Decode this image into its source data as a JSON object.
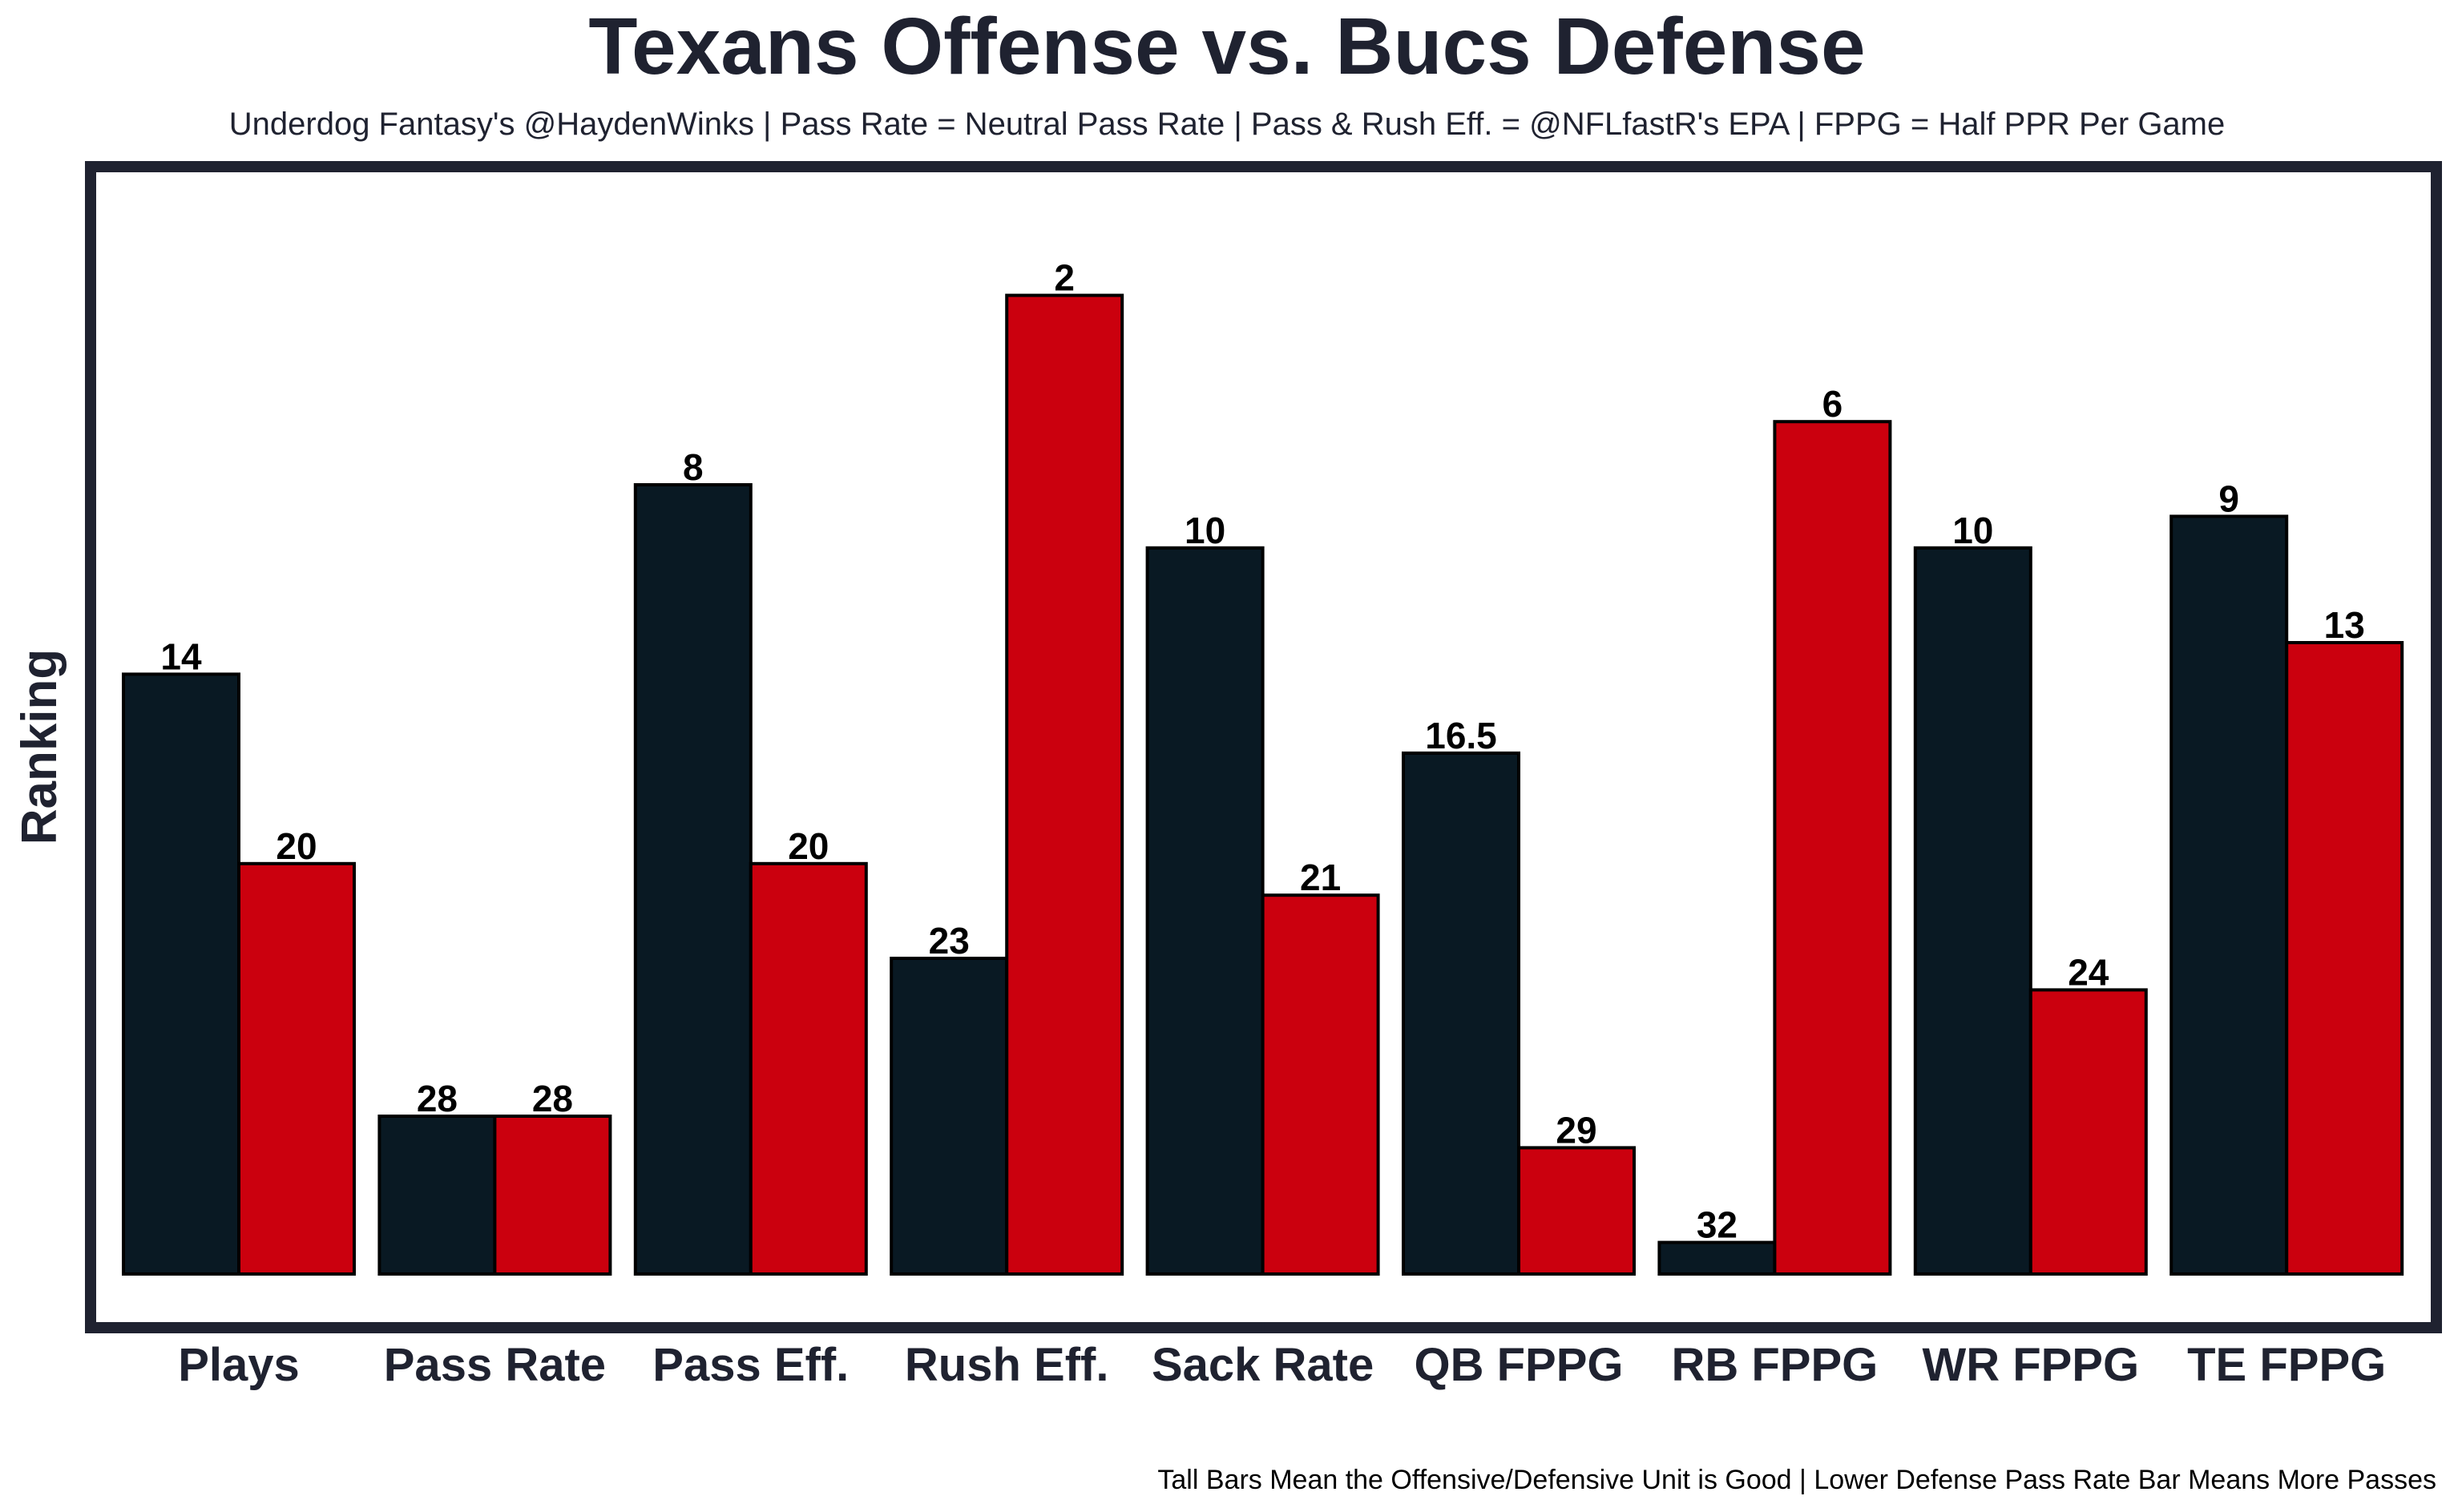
{
  "chart_data": {
    "type": "bar",
    "title": "Texans Offense vs. Bucs Defense",
    "subtitle": "Underdog Fantasy's @HaydenWinks | Pass Rate = Neutral Pass Rate | Pass & Rush Eff. = @NFLfastR's EPA | FPPG = Half PPR Per Game",
    "ylabel": "Ranking",
    "xlabel": "",
    "footnote": "Tall Bars Mean the Offensive/Defensive Unit is Good | Lower Defense Pass Rate Bar Means More Passes",
    "grid": false,
    "categories": [
      "Plays",
      "Pass Rate",
      "Pass Eff.",
      "Rush Eff.",
      "Sack Rate",
      "QB FPPG",
      "RB FPPG",
      "WR FPPG",
      "TE FPPG"
    ],
    "series": [
      {
        "name": "Texans Offense",
        "color": "#091923",
        "ranks": [
          14,
          28,
          8,
          23,
          10,
          16.5,
          32,
          10,
          9
        ],
        "labels": [
          "14",
          "28",
          "8",
          "23",
          "10",
          "16.5",
          "32",
          "10",
          "9"
        ]
      },
      {
        "name": "Bucs Defense",
        "color": "#cb000e",
        "ranks": [
          20,
          28,
          20,
          2,
          21,
          29,
          6,
          24,
          13
        ],
        "labels": [
          "20",
          "28",
          "20",
          "2",
          "21",
          "29",
          "6",
          "24",
          "13"
        ]
      }
    ],
    "bar_height_formula": "33 - rank",
    "ylim": [
      0,
      33
    ]
  }
}
